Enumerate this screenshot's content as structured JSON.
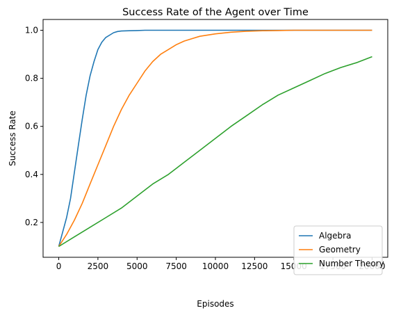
{
  "chart_data": {
    "type": "line",
    "title": "Success Rate of the Agent over Time",
    "xlabel": "Episodes",
    "ylabel": "Success Rate",
    "xlim": [
      -1000,
      21000
    ],
    "ylim": [
      0.055,
      1.045
    ],
    "xticks": [
      0,
      2500,
      5000,
      7500,
      10000,
      12500,
      15000,
      17500,
      20000
    ],
    "yticks": [
      0.2,
      0.4,
      0.6,
      0.8,
      1.0
    ],
    "ytick_labels": [
      "0.2",
      "0.4",
      "0.6",
      "0.8",
      "1.0"
    ],
    "grid": false,
    "legend": {
      "position": "bottom-right"
    },
    "series": [
      {
        "name": "Algebra",
        "color": "#1f77b4",
        "x": [
          0,
          250,
          500,
          750,
          1000,
          1250,
          1500,
          1750,
          2000,
          2250,
          2500,
          2750,
          3000,
          3250,
          3500,
          3750,
          4000,
          4500,
          5000,
          5500,
          6000,
          7000,
          8000,
          9000,
          10000,
          12500,
          15000,
          17500,
          20000
        ],
        "y": [
          0.1,
          0.16,
          0.22,
          0.3,
          0.41,
          0.52,
          0.63,
          0.73,
          0.81,
          0.87,
          0.92,
          0.95,
          0.97,
          0.98,
          0.99,
          0.995,
          0.997,
          0.998,
          0.999,
          1.0,
          1.0,
          1.0,
          1.0,
          1.0,
          1.0,
          1.0,
          1.0,
          1.0,
          1.0
        ]
      },
      {
        "name": "Geometry",
        "color": "#ff7f0e",
        "x": [
          0,
          500,
          1000,
          1500,
          2000,
          2500,
          3000,
          3500,
          4000,
          4500,
          5000,
          5500,
          6000,
          6500,
          7000,
          7500,
          8000,
          8500,
          9000,
          10000,
          11000,
          12000,
          13000,
          14000,
          15000,
          17500,
          20000
        ],
        "y": [
          0.1,
          0.15,
          0.21,
          0.28,
          0.36,
          0.44,
          0.52,
          0.6,
          0.67,
          0.73,
          0.78,
          0.83,
          0.87,
          0.9,
          0.92,
          0.94,
          0.955,
          0.965,
          0.975,
          0.985,
          0.992,
          0.996,
          0.998,
          0.999,
          1.0,
          1.0,
          1.0
        ]
      },
      {
        "name": "Number Theory",
        "color": "#2ca02c",
        "x": [
          0,
          1000,
          2000,
          3000,
          4000,
          5000,
          6000,
          7000,
          8000,
          9000,
          10000,
          11000,
          12000,
          13000,
          14000,
          15000,
          16000,
          17000,
          18000,
          19000,
          20000
        ],
        "y": [
          0.1,
          0.14,
          0.18,
          0.22,
          0.26,
          0.31,
          0.36,
          0.4,
          0.45,
          0.5,
          0.55,
          0.6,
          0.645,
          0.69,
          0.73,
          0.76,
          0.79,
          0.82,
          0.845,
          0.865,
          0.89
        ]
      }
    ]
  }
}
